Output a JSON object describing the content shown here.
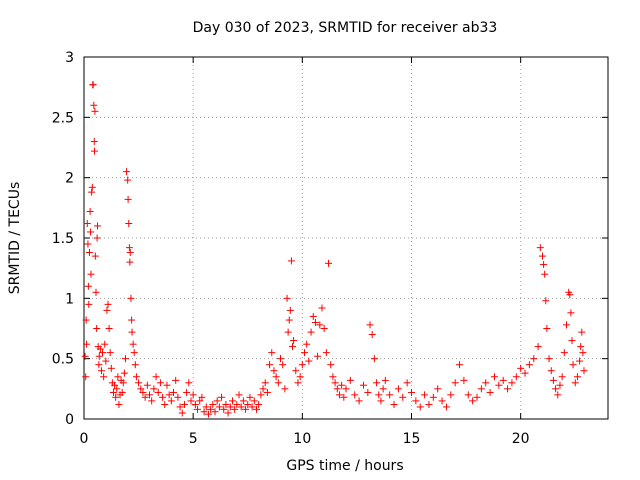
{
  "chart_data": {
    "type": "scatter",
    "title": "Day 030 of 2023, SRMTID for receiver ab33",
    "xlabel": "GPS time / hours",
    "ylabel": "SRMTID / TECUs",
    "xlim": [
      0,
      24
    ],
    "ylim": [
      0,
      3
    ],
    "xticks": [
      0,
      5,
      10,
      15,
      20
    ],
    "xtick_labels": [
      "0",
      "5",
      "10",
      "15",
      "20"
    ],
    "yticks": [
      0,
      0.5,
      1,
      1.5,
      2,
      2.5,
      3
    ],
    "ytick_labels": [
      "0",
      "0.5",
      "1",
      "1.5",
      "2",
      "2.5",
      "3"
    ],
    "grid": true,
    "marker": "+",
    "color": "#ff0000",
    "series": [
      {
        "name": "ab33",
        "points": [
          [
            0.05,
            0.52
          ],
          [
            0.08,
            0.35
          ],
          [
            0.1,
            0.82
          ],
          [
            0.12,
            0.62
          ],
          [
            0.15,
            1.62
          ],
          [
            0.18,
            1.45
          ],
          [
            0.2,
            1.1
          ],
          [
            0.22,
            0.95
          ],
          [
            0.25,
            1.38
          ],
          [
            0.28,
            1.72
          ],
          [
            0.3,
            1.55
          ],
          [
            0.32,
            1.2
          ],
          [
            0.35,
            1.88
          ],
          [
            0.38,
            1.92
          ],
          [
            0.4,
            2.77
          ],
          [
            0.42,
            2.77
          ],
          [
            0.45,
            2.6
          ],
          [
            0.47,
            2.3
          ],
          [
            0.48,
            2.22
          ],
          [
            0.5,
            2.55
          ],
          [
            0.52,
            1.35
          ],
          [
            0.55,
            1.05
          ],
          [
            0.58,
            0.75
          ],
          [
            0.6,
            1.5
          ],
          [
            0.62,
            1.6
          ],
          [
            0.65,
            0.6
          ],
          [
            0.68,
            0.45
          ],
          [
            0.7,
            0.52
          ],
          [
            0.75,
            0.58
          ],
          [
            0.8,
            0.4
          ],
          [
            0.85,
            0.55
          ],
          [
            0.9,
            0.35
          ],
          [
            0.95,
            0.62
          ],
          [
            1.0,
            0.48
          ],
          [
            1.05,
            0.9
          ],
          [
            1.1,
            0.95
          ],
          [
            1.15,
            0.75
          ],
          [
            1.2,
            0.55
          ],
          [
            1.25,
            0.42
          ],
          [
            1.3,
            0.3
          ],
          [
            1.35,
            0.22
          ],
          [
            1.4,
            0.28
          ],
          [
            1.45,
            0.18
          ],
          [
            1.5,
            0.25
          ],
          [
            1.55,
            0.35
          ],
          [
            1.6,
            0.12
          ],
          [
            1.65,
            0.2
          ],
          [
            1.7,
            0.32
          ],
          [
            1.75,
            0.22
          ],
          [
            1.8,
            0.3
          ],
          [
            1.85,
            0.38
          ],
          [
            1.9,
            0.5
          ],
          [
            1.95,
            2.05
          ],
          [
            2.0,
            1.98
          ],
          [
            2.02,
            1.82
          ],
          [
            2.05,
            1.62
          ],
          [
            2.08,
            1.42
          ],
          [
            2.1,
            1.3
          ],
          [
            2.12,
            1.38
          ],
          [
            2.15,
            1.0
          ],
          [
            2.18,
            0.82
          ],
          [
            2.2,
            0.72
          ],
          [
            2.25,
            0.62
          ],
          [
            2.3,
            0.55
          ],
          [
            2.35,
            0.45
          ],
          [
            2.4,
            0.35
          ],
          [
            2.5,
            0.3
          ],
          [
            2.6,
            0.25
          ],
          [
            2.7,
            0.22
          ],
          [
            2.8,
            0.18
          ],
          [
            2.9,
            0.28
          ],
          [
            3.0,
            0.2
          ],
          [
            3.1,
            0.15
          ],
          [
            3.2,
            0.25
          ],
          [
            3.3,
            0.35
          ],
          [
            3.4,
            0.22
          ],
          [
            3.5,
            0.3
          ],
          [
            3.6,
            0.18
          ],
          [
            3.7,
            0.12
          ],
          [
            3.8,
            0.28
          ],
          [
            3.9,
            0.2
          ],
          [
            4.0,
            0.15
          ],
          [
            4.1,
            0.22
          ],
          [
            4.2,
            0.32
          ],
          [
            4.3,
            0.18
          ],
          [
            4.4,
            0.1
          ],
          [
            4.5,
            0.05
          ],
          [
            4.6,
            0.12
          ],
          [
            4.7,
            0.22
          ],
          [
            4.8,
            0.3
          ],
          [
            4.9,
            0.15
          ],
          [
            5.0,
            0.2
          ],
          [
            5.1,
            0.12
          ],
          [
            5.2,
            0.08
          ],
          [
            5.3,
            0.15
          ],
          [
            5.4,
            0.18
          ],
          [
            5.5,
            0.06
          ],
          [
            5.6,
            0.1
          ],
          [
            5.7,
            0.04
          ],
          [
            5.8,
            0.08
          ],
          [
            5.9,
            0.12
          ],
          [
            6.0,
            0.06
          ],
          [
            6.1,
            0.15
          ],
          [
            6.2,
            0.1
          ],
          [
            6.3,
            0.18
          ],
          [
            6.4,
            0.08
          ],
          [
            6.5,
            0.12
          ],
          [
            6.6,
            0.05
          ],
          [
            6.7,
            0.1
          ],
          [
            6.8,
            0.15
          ],
          [
            6.9,
            0.08
          ],
          [
            7.0,
            0.12
          ],
          [
            7.1,
            0.2
          ],
          [
            7.2,
            0.1
          ],
          [
            7.3,
            0.15
          ],
          [
            7.4,
            0.08
          ],
          [
            7.5,
            0.12
          ],
          [
            7.6,
            0.18
          ],
          [
            7.7,
            0.1
          ],
          [
            7.8,
            0.15
          ],
          [
            7.9,
            0.08
          ],
          [
            8.0,
            0.12
          ],
          [
            8.1,
            0.2
          ],
          [
            8.2,
            0.25
          ],
          [
            8.3,
            0.3
          ],
          [
            8.4,
            0.22
          ],
          [
            8.5,
            0.45
          ],
          [
            8.6,
            0.55
          ],
          [
            8.7,
            0.4
          ],
          [
            8.8,
            0.35
          ],
          [
            8.9,
            0.3
          ],
          [
            9.0,
            0.5
          ],
          [
            9.1,
            0.45
          ],
          [
            9.2,
            0.25
          ],
          [
            9.3,
            1.0
          ],
          [
            9.35,
            0.72
          ],
          [
            9.4,
            0.82
          ],
          [
            9.45,
            0.9
          ],
          [
            9.5,
            1.31
          ],
          [
            9.55,
            0.6
          ],
          [
            9.6,
            0.65
          ],
          [
            9.7,
            0.4
          ],
          [
            9.8,
            0.3
          ],
          [
            9.9,
            0.35
          ],
          [
            10.0,
            0.45
          ],
          [
            10.1,
            0.55
          ],
          [
            10.2,
            0.62
          ],
          [
            10.3,
            0.48
          ],
          [
            10.4,
            0.72
          ],
          [
            10.5,
            0.85
          ],
          [
            10.6,
            0.8
          ],
          [
            10.7,
            0.52
          ],
          [
            10.8,
            0.78
          ],
          [
            10.9,
            0.92
          ],
          [
            11.0,
            0.75
          ],
          [
            11.1,
            0.55
          ],
          [
            11.2,
            1.29
          ],
          [
            11.3,
            0.45
          ],
          [
            11.4,
            0.35
          ],
          [
            11.5,
            0.3
          ],
          [
            11.6,
            0.25
          ],
          [
            11.7,
            0.2
          ],
          [
            11.8,
            0.28
          ],
          [
            11.9,
            0.18
          ],
          [
            12.0,
            0.25
          ],
          [
            12.2,
            0.32
          ],
          [
            12.4,
            0.2
          ],
          [
            12.6,
            0.15
          ],
          [
            12.8,
            0.28
          ],
          [
            13.0,
            0.22
          ],
          [
            13.1,
            0.78
          ],
          [
            13.2,
            0.7
          ],
          [
            13.3,
            0.5
          ],
          [
            13.4,
            0.3
          ],
          [
            13.5,
            0.2
          ],
          [
            13.6,
            0.15
          ],
          [
            13.7,
            0.25
          ],
          [
            13.8,
            0.32
          ],
          [
            14.0,
            0.2
          ],
          [
            14.2,
            0.12
          ],
          [
            14.4,
            0.25
          ],
          [
            14.6,
            0.18
          ],
          [
            14.8,
            0.3
          ],
          [
            15.0,
            0.22
          ],
          [
            15.2,
            0.15
          ],
          [
            15.4,
            0.1
          ],
          [
            15.6,
            0.2
          ],
          [
            15.8,
            0.12
          ],
          [
            16.0,
            0.18
          ],
          [
            16.2,
            0.25
          ],
          [
            16.4,
            0.15
          ],
          [
            16.6,
            0.1
          ],
          [
            16.8,
            0.2
          ],
          [
            17.0,
            0.3
          ],
          [
            17.2,
            0.45
          ],
          [
            17.4,
            0.32
          ],
          [
            17.6,
            0.2
          ],
          [
            17.8,
            0.15
          ],
          [
            18.0,
            0.18
          ],
          [
            18.2,
            0.25
          ],
          [
            18.4,
            0.3
          ],
          [
            18.6,
            0.22
          ],
          [
            18.8,
            0.35
          ],
          [
            19.0,
            0.28
          ],
          [
            19.2,
            0.32
          ],
          [
            19.4,
            0.25
          ],
          [
            19.6,
            0.3
          ],
          [
            19.8,
            0.35
          ],
          [
            20.0,
            0.42
          ],
          [
            20.2,
            0.38
          ],
          [
            20.4,
            0.45
          ],
          [
            20.6,
            0.5
          ],
          [
            20.8,
            0.6
          ],
          [
            20.9,
            1.42
          ],
          [
            21.0,
            1.35
          ],
          [
            21.05,
            1.28
          ],
          [
            21.1,
            1.2
          ],
          [
            21.15,
            0.98
          ],
          [
            21.2,
            0.75
          ],
          [
            21.3,
            0.5
          ],
          [
            21.4,
            0.4
          ],
          [
            21.5,
            0.32
          ],
          [
            21.6,
            0.25
          ],
          [
            21.7,
            0.2
          ],
          [
            21.8,
            0.28
          ],
          [
            21.9,
            0.35
          ],
          [
            22.0,
            0.55
          ],
          [
            22.1,
            0.78
          ],
          [
            22.2,
            1.05
          ],
          [
            22.25,
            1.03
          ],
          [
            22.3,
            0.88
          ],
          [
            22.35,
            0.65
          ],
          [
            22.4,
            0.45
          ],
          [
            22.5,
            0.3
          ],
          [
            22.6,
            0.35
          ],
          [
            22.7,
            0.48
          ],
          [
            22.75,
            0.6
          ],
          [
            22.8,
            0.72
          ],
          [
            22.85,
            0.55
          ],
          [
            22.9,
            0.4
          ]
        ]
      }
    ]
  }
}
